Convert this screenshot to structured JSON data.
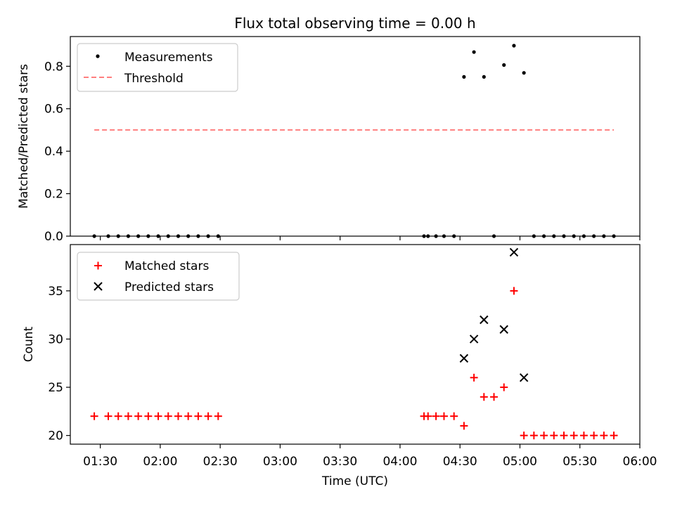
{
  "chart_data": [
    {
      "type": "scatter",
      "title": "Flux total observing time = 0.00 h",
      "ylabel": "Matched/Predicted stars",
      "ylim": [
        0,
        0.94
      ],
      "yticks": [
        "0.0",
        "0.2",
        "0.4",
        "0.6",
        "0.8"
      ],
      "legend_position": "top-left",
      "series": [
        {
          "name": "Measurements",
          "marker": "dot",
          "color": "#000000",
          "x": [
            "01:27",
            "01:34",
            "01:39",
            "01:44",
            "01:49",
            "01:54",
            "01:59",
            "02:04",
            "02:09",
            "02:14",
            "02:19",
            "02:24",
            "02:29",
            "04:12",
            "04:14",
            "04:18",
            "04:22",
            "04:27",
            "04:32",
            "04:37",
            "04:42",
            "04:47",
            "04:52",
            "04:57",
            "05:02",
            "05:07",
            "05:12",
            "05:17",
            "05:22",
            "05:27",
            "05:32",
            "05:37",
            "05:42",
            "05:47"
          ],
          "y": [
            0,
            0,
            0,
            0,
            0,
            0,
            0,
            0,
            0,
            0,
            0,
            0,
            0,
            0,
            0,
            0,
            0,
            0,
            0.75,
            0.867,
            0.75,
            0,
            0.806,
            0.897,
            0.769,
            0,
            0,
            0,
            0,
            0,
            0,
            0,
            0,
            0
          ]
        },
        {
          "name": "Threshold",
          "marker": "dashed-line",
          "color": "#ff7f7f",
          "x": [
            "01:27",
            "05:47"
          ],
          "y": [
            0.5,
            0.5
          ]
        }
      ]
    },
    {
      "type": "scatter",
      "xlabel": "Time (UTC)",
      "ylabel": "Count",
      "ylim": [
        19.1,
        39.8
      ],
      "yticks": [
        "20",
        "25",
        "30",
        "35"
      ],
      "xticks": [
        "01:30",
        "02:00",
        "02:30",
        "03:00",
        "03:30",
        "04:00",
        "04:30",
        "05:00",
        "05:30",
        "06:00"
      ],
      "xlim": [
        "01:15",
        "06:00"
      ],
      "legend_position": "top-left",
      "series": [
        {
          "name": "Matched stars",
          "marker": "plus",
          "color": "#ff0000",
          "x": [
            "01:27",
            "01:34",
            "01:39",
            "01:44",
            "01:49",
            "01:54",
            "01:59",
            "02:04",
            "02:09",
            "02:14",
            "02:19",
            "02:24",
            "02:29",
            "04:12",
            "04:14",
            "04:18",
            "04:22",
            "04:27",
            "04:32",
            "04:37",
            "04:42",
            "04:47",
            "04:52",
            "04:57",
            "05:02",
            "05:07",
            "05:12",
            "05:17",
            "05:22",
            "05:27",
            "05:32",
            "05:37",
            "05:42",
            "05:47"
          ],
          "y": [
            22,
            22,
            22,
            22,
            22,
            22,
            22,
            22,
            22,
            22,
            22,
            22,
            22,
            22,
            22,
            22,
            22,
            22,
            21,
            26,
            24,
            24,
            25,
            35,
            20,
            20,
            20,
            20,
            20,
            20,
            20,
            20,
            20,
            20
          ]
        },
        {
          "name": "Predicted stars",
          "marker": "x",
          "color": "#000000",
          "x": [
            "04:32",
            "04:37",
            "04:42",
            "04:52",
            "04:57",
            "05:02"
          ],
          "y": [
            28,
            30,
            32,
            31,
            39,
            26
          ]
        }
      ]
    }
  ]
}
